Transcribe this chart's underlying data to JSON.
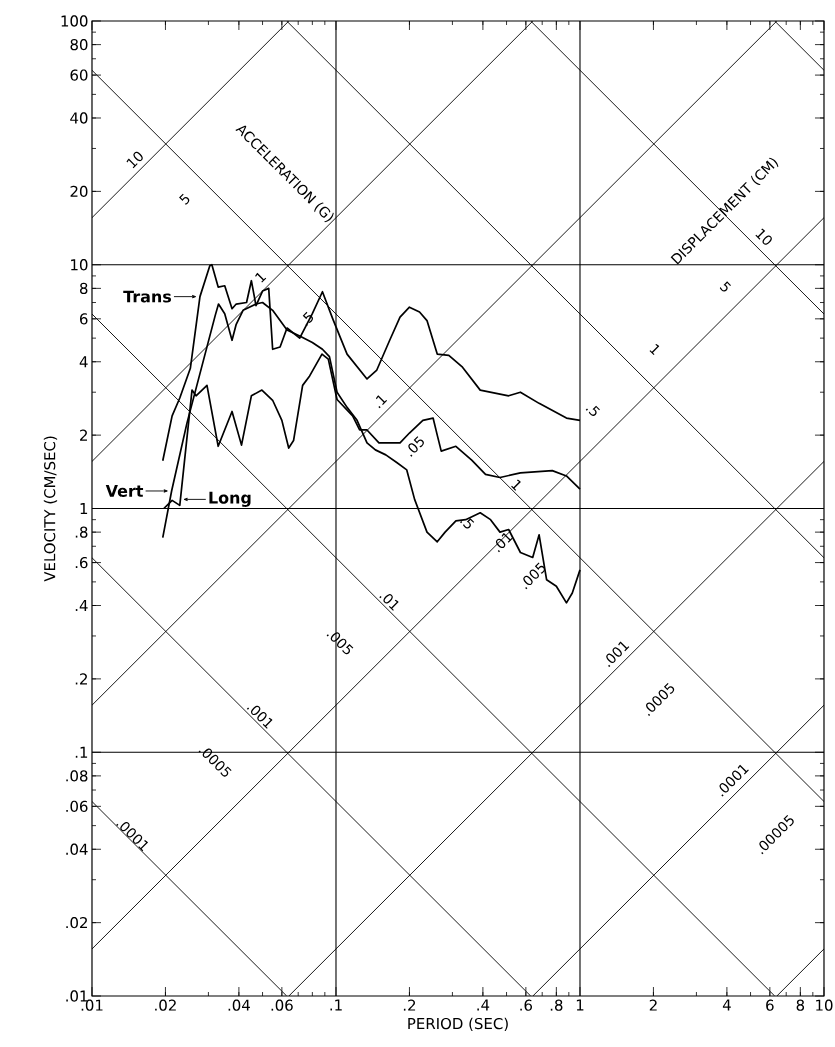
{
  "chart_data": {
    "type": "line",
    "xlabel": "PERIOD (SEC)",
    "ylabel": "VELOCITY (CM/SEC)",
    "log": "xy",
    "xlim": [
      0.01,
      10
    ],
    "ylim": [
      0.01,
      100
    ],
    "xticks": [
      {
        "value": 0.01,
        "label": ".01"
      },
      {
        "value": 0.02,
        "label": ".02"
      },
      {
        "value": 0.04,
        "label": ".04"
      },
      {
        "value": 0.06,
        "label": ".06"
      },
      {
        "value": 0.1,
        "label": ".1"
      },
      {
        "value": 0.2,
        "label": ".2"
      },
      {
        "value": 0.4,
        "label": ".4"
      },
      {
        "value": 0.6,
        "label": ".6"
      },
      {
        "value": 0.8,
        "label": ".8"
      },
      1,
      2,
      4,
      6,
      8,
      10
    ],
    "yticks": [
      {
        "value": 0.01,
        "label": ".01"
      },
      {
        "value": 0.02,
        "label": ".02"
      },
      {
        "value": 0.04,
        "label": ".04"
      },
      {
        "value": 0.06,
        "label": ".06"
      },
      {
        "value": 0.08,
        "label": ".08"
      },
      {
        "value": 0.1,
        "label": ".1"
      },
      {
        "value": 0.2,
        "label": ".2"
      },
      {
        "value": 0.4,
        "label": ".4"
      },
      {
        "value": 0.6,
        "label": ".6"
      },
      {
        "value": 0.8,
        "label": ".8"
      },
      1,
      2,
      4,
      6,
      8,
      10,
      20,
      40,
      60,
      80,
      100
    ],
    "series": [
      {
        "name": "Trans",
        "color": "#000000",
        "x": [
          0.0195,
          0.0213,
          0.0229,
          0.0253,
          0.0277,
          0.0304,
          0.031,
          0.0329,
          0.035,
          0.0375,
          0.039,
          0.043,
          0.045,
          0.047,
          0.05,
          0.053,
          0.055,
          0.059,
          0.063,
          0.071,
          0.08,
          0.088,
          0.097,
          0.111,
          0.134,
          0.147,
          0.166,
          0.183,
          0.2,
          0.22,
          0.236,
          0.26,
          0.29,
          0.33,
          0.39,
          0.51,
          0.57,
          0.68,
          0.88,
          1.0
        ],
        "values": [
          1.57,
          2.4,
          2.84,
          3.76,
          7.4,
          9.9,
          10.0,
          8.1,
          8.2,
          6.6,
          6.9,
          7.0,
          8.6,
          6.8,
          7.8,
          8.0,
          4.5,
          4.6,
          5.5,
          5.0,
          6.3,
          7.75,
          6.0,
          4.3,
          3.4,
          3.7,
          4.9,
          6.1,
          6.7,
          6.4,
          5.9,
          4.3,
          4.25,
          3.8,
          3.06,
          2.9,
          3.0,
          2.7,
          2.35,
          2.3
        ]
      },
      {
        "name": "Vert",
        "color": "#000000",
        "x": [
          0.0195,
          0.0212,
          0.0245,
          0.032,
          0.033,
          0.035,
          0.0375,
          0.039,
          0.0416,
          0.047,
          0.05,
          0.055,
          0.063,
          0.071,
          0.08,
          0.088,
          0.094,
          0.101,
          0.111,
          0.122,
          0.134,
          0.145,
          0.16,
          0.178,
          0.195,
          0.21,
          0.236,
          0.26,
          0.28,
          0.31,
          0.34,
          0.39,
          0.43,
          0.47,
          0.51,
          0.57,
          0.64,
          0.68,
          0.73,
          0.8,
          0.88,
          0.93,
          1.0
        ],
        "values": [
          0.76,
          1.18,
          2.24,
          6.2,
          6.9,
          6.3,
          4.9,
          5.7,
          6.5,
          6.9,
          7.0,
          6.5,
          5.4,
          5.1,
          4.8,
          4.5,
          4.2,
          3.0,
          2.6,
          2.3,
          1.86,
          1.74,
          1.66,
          1.54,
          1.44,
          1.09,
          0.8,
          0.73,
          0.8,
          0.89,
          0.9,
          0.96,
          0.9,
          0.8,
          0.82,
          0.66,
          0.63,
          0.78,
          0.51,
          0.48,
          0.41,
          0.45,
          0.56
        ]
      },
      {
        "name": "Long",
        "color": "#000000",
        "x": [
          0.0197,
          0.0213,
          0.0229,
          0.0257,
          0.0267,
          0.0296,
          0.0329,
          0.0375,
          0.041,
          0.045,
          0.0497,
          0.055,
          0.06,
          0.064,
          0.067,
          0.073,
          0.078,
          0.0876,
          0.093,
          0.101,
          0.117,
          0.125,
          0.134,
          0.15,
          0.166,
          0.183,
          0.2,
          0.227,
          0.25,
          0.26,
          0.27,
          0.31,
          0.36,
          0.41,
          0.47,
          0.57,
          0.77,
          0.88,
          1.0
        ],
        "values": [
          1.0,
          1.08,
          1.03,
          3.06,
          2.9,
          3.2,
          1.8,
          2.5,
          1.82,
          2.9,
          3.06,
          2.78,
          2.3,
          1.77,
          1.9,
          3.2,
          3.5,
          4.3,
          4.1,
          2.8,
          2.4,
          2.1,
          2.1,
          1.86,
          1.86,
          1.86,
          2.04,
          2.3,
          2.35,
          2.0,
          1.72,
          1.8,
          1.58,
          1.38,
          1.34,
          1.4,
          1.43,
          1.36,
          1.2
        ]
      },
      {
        "color": "#000000",
        "x": [
          0.01,
          0.0641
        ],
        "values": [
          15.6,
          100
        ]
      },
      {
        "color": "#000000",
        "x": [
          0.01,
          0.641
        ],
        "values": [
          1.56,
          100
        ]
      },
      {
        "color": "#000000",
        "x": [
          0.01,
          6.41
        ],
        "values": [
          0.156,
          100
        ]
      },
      {
        "color": "#000000",
        "x": [
          0.01,
          10
        ],
        "values": [
          0.0156,
          15.6
        ]
      },
      {
        "color": "#000000",
        "x": [
          0.0641,
          10
        ],
        "values": [
          0.01,
          1.56
        ]
      },
      {
        "color": "#000000",
        "x": [
          0.641,
          10
        ],
        "values": [
          0.01,
          0.156
        ]
      },
      {
        "color": "#000000",
        "x": [
          6.41,
          10
        ],
        "values": [
          0.01,
          0.0156
        ]
      },
      {
        "color": "#000000",
        "x": [
          6.28,
          10
        ],
        "values": [
          100,
          62.8
        ]
      },
      {
        "color": "#000000",
        "x": [
          0.628,
          10
        ],
        "values": [
          100,
          6.28
        ]
      },
      {
        "color": "#000000",
        "x": [
          0.0628,
          10
        ],
        "values": [
          100,
          0.628
        ]
      },
      {
        "color": "#000000",
        "x": [
          0.01,
          10
        ],
        "values": [
          62.8,
          0.0628
        ]
      },
      {
        "color": "#000000",
        "x": [
          0.01,
          6.28
        ],
        "values": [
          6.28,
          0.01
        ]
      },
      {
        "color": "#000000",
        "x": [
          0.01,
          0.628
        ],
        "values": [
          0.628,
          0.01
        ]
      },
      {
        "color": "#000000",
        "x": [
          0.01,
          0.0628
        ],
        "values": [
          0.0628,
          0.01
        ]
      }
    ],
    "ref_lines": [
      {
        "axis": "y",
        "value": 10
      },
      {
        "axis": "y",
        "value": 1
      },
      {
        "axis": "y",
        "value": 0.1
      },
      {
        "axis": "x",
        "value": 0.1
      },
      {
        "axis": "x",
        "value": 1
      }
    ],
    "legend": "left",
    "annotations": [
      "ACCELERATION (G)",
      "DISPLACEMENT (CM)",
      "10",
      "5",
      "1",
      ".5",
      ".1",
      ".05",
      ".01",
      ".005",
      "10",
      "5",
      "1",
      ".5",
      "1",
      ".5",
      ".01",
      ".005",
      ".001",
      ".0005",
      ".0001",
      ".001",
      ".0005",
      ".0001",
      ".00005"
    ]
  }
}
